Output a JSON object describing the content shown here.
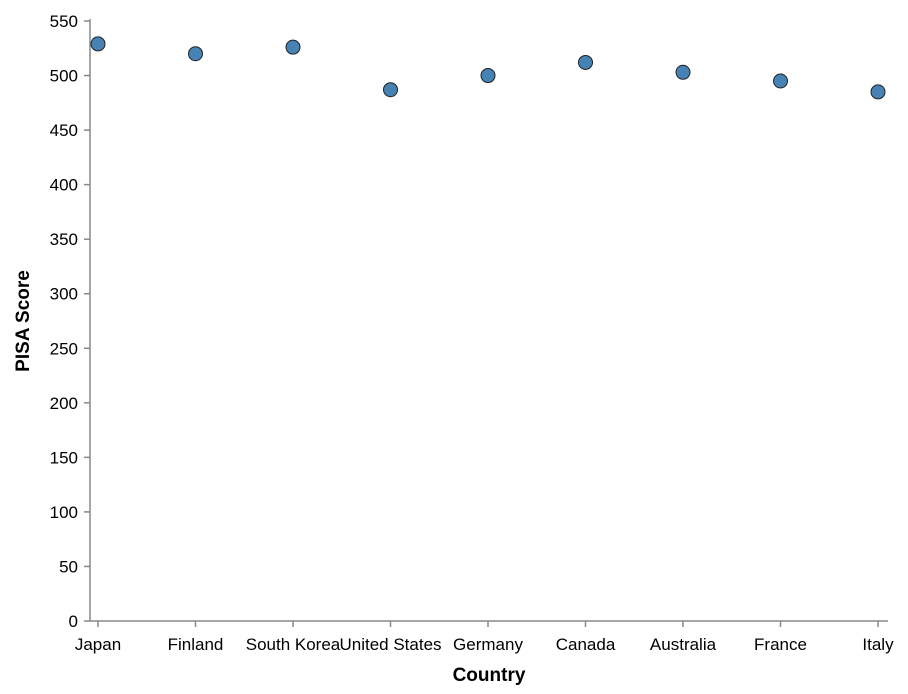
{
  "chart_data": {
    "type": "scatter",
    "categories": [
      "Japan",
      "Finland",
      "South Korea",
      "United States",
      "Germany",
      "Canada",
      "Australia",
      "France",
      "Italy"
    ],
    "values": [
      529,
      520,
      526,
      487,
      500,
      512,
      503,
      495,
      485
    ],
    "xlabel": "Country",
    "ylabel": "PISA Score",
    "ylim": [
      0,
      550
    ],
    "yticks": [
      0,
      50,
      100,
      150,
      200,
      250,
      300,
      350,
      400,
      450,
      500,
      550
    ],
    "grid": false,
    "point_color": "#4682b4"
  }
}
